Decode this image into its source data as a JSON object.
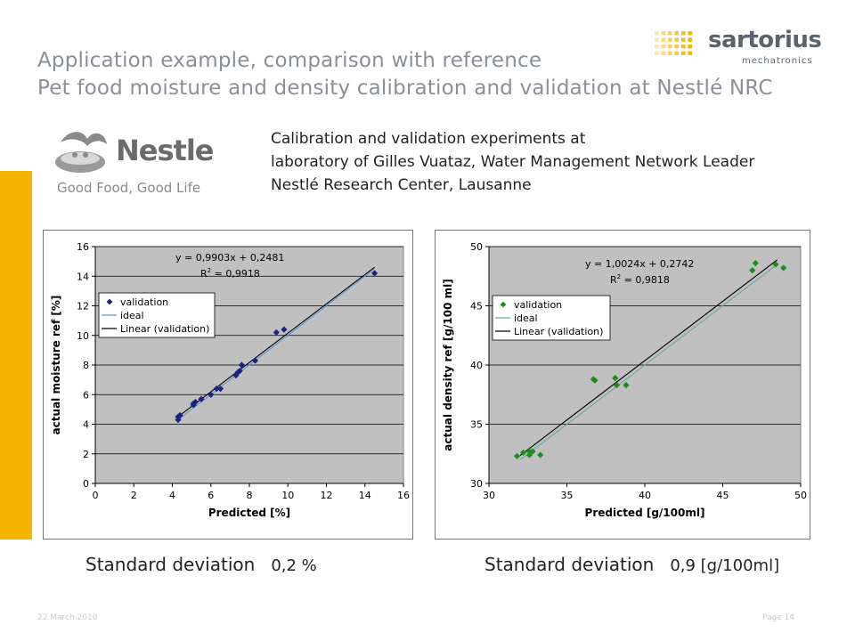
{
  "header": {
    "title_line1": "Application example, comparison with reference",
    "title_line2": "Pet food moisture and density calibration and validation at Nestlé NRC"
  },
  "logos": {
    "sartorius": {
      "name": "sartorius",
      "subtitle": "mechatronics"
    },
    "nestle": {
      "name": "Nestle",
      "tagline": "Good Food, Good Life"
    }
  },
  "info": {
    "line1": "Calibration and validation experiments at",
    "line2": "laboratory of Gilles Vuataz, Water Management Network Leader",
    "line3": "Nestlé Research Center, Lausanne"
  },
  "chart_data": [
    {
      "type": "scatter",
      "title": "",
      "xlabel": "Predicted [%]",
      "ylabel": "actual moisture ref [%]",
      "xlim": [
        0,
        16
      ],
      "ylim": [
        0,
        16
      ],
      "xticks": [
        0,
        2,
        4,
        6,
        8,
        10,
        12,
        14,
        16
      ],
      "yticks": [
        0,
        2,
        4,
        6,
        8,
        10,
        12,
        14,
        16
      ],
      "grid": true,
      "plot_bg": "#c0c0c0",
      "legend_placement": "top-left",
      "equation": "y = 0,9903x + 0,2481",
      "r2_label": "R",
      "r2_sup": "2",
      "r2_value": " = 0,9918",
      "series": [
        {
          "name": "validation",
          "kind": "points",
          "marker": "diamond",
          "color": "#1a237e",
          "points": [
            [
              4.3,
              4.3
            ],
            [
              4.3,
              4.5
            ],
            [
              4.4,
              4.6
            ],
            [
              5.1,
              5.3
            ],
            [
              5.1,
              5.4
            ],
            [
              5.2,
              5.5
            ],
            [
              5.5,
              5.7
            ],
            [
              6.0,
              6.0
            ],
            [
              6.3,
              6.4
            ],
            [
              6.5,
              6.4
            ],
            [
              7.3,
              7.3
            ],
            [
              7.4,
              7.5
            ],
            [
              7.5,
              7.6
            ],
            [
              7.6,
              8.0
            ],
            [
              8.3,
              8.3
            ],
            [
              9.4,
              10.2
            ],
            [
              9.8,
              10.4
            ],
            [
              14.5,
              14.2
            ]
          ]
        },
        {
          "name": "ideal",
          "kind": "line",
          "color": "#5b9bd5",
          "slope": 1,
          "intercept": 0,
          "x_range": [
            4.3,
            14.5
          ]
        },
        {
          "name": "Linear (validation)",
          "kind": "line",
          "color": "#000000",
          "slope": 0.9903,
          "intercept": 0.2481,
          "x_range": [
            4.3,
            14.5
          ]
        }
      ]
    },
    {
      "type": "scatter",
      "title": "",
      "xlabel": "Predicted [g/100ml]",
      "ylabel": "actual density ref [g/100 ml]",
      "xlim": [
        30,
        50
      ],
      "ylim": [
        30,
        50
      ],
      "xticks": [
        30,
        35,
        40,
        45,
        50
      ],
      "yticks": [
        30,
        35,
        40,
        45,
        50
      ],
      "grid": true,
      "plot_bg": "#c0c0c0",
      "legend_placement": "top-left",
      "equation": "y = 1,0024x + 0,2742",
      "r2_label": "R",
      "r2_sup": "2",
      "r2_value": " = 0,9818",
      "series": [
        {
          "name": "validation",
          "kind": "points",
          "marker": "diamond",
          "color": "#1e8c1e",
          "points": [
            [
              31.8,
              32.3
            ],
            [
              32.2,
              32.6
            ],
            [
              32.6,
              32.4
            ],
            [
              32.6,
              32.7
            ],
            [
              32.8,
              32.7
            ],
            [
              33.3,
              32.4
            ],
            [
              36.7,
              38.8
            ],
            [
              36.8,
              38.7
            ],
            [
              38.1,
              38.9
            ],
            [
              38.2,
              38.3
            ],
            [
              38.8,
              38.3
            ],
            [
              46.9,
              48.0
            ],
            [
              47.1,
              48.6
            ],
            [
              48.4,
              48.5
            ],
            [
              48.9,
              48.2
            ]
          ]
        },
        {
          "name": "ideal",
          "kind": "line",
          "color": "#6aa6a0",
          "slope": 1,
          "intercept": 0,
          "x_range": [
            32.0,
            48.5
          ]
        },
        {
          "name": "Linear (validation)",
          "kind": "line",
          "color": "#000000",
          "slope": 1.0024,
          "intercept": 0.2742,
          "x_range": [
            32.0,
            48.5
          ]
        }
      ]
    }
  ],
  "stats": {
    "sd1_label": "Standard deviation",
    "sd1_value": "0,2 %",
    "sd2_label": "Standard deviation",
    "sd2_value": "0,9 [g/100ml]"
  },
  "footer": {
    "date": "22 March 2010",
    "page": "Page   14"
  }
}
